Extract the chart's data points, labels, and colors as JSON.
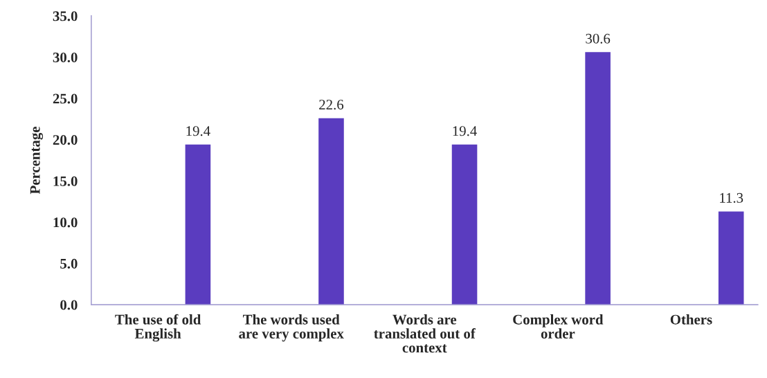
{
  "chart_data": {
    "type": "bar",
    "ylabel": "Percentage",
    "categories": [
      "The use of old\nEnglish",
      "The words used\nare very complex",
      "Words are\ntranslated out of\ncontext",
      "Complex word\norder",
      "Others"
    ],
    "values": [
      19.4,
      22.6,
      19.4,
      30.6,
      11.3
    ],
    "color": "#5a3cbf",
    "ylim": [
      0,
      35
    ],
    "yticks": [
      {
        "value": 0,
        "label": "0.0"
      },
      {
        "value": 5,
        "label": "5.0"
      },
      {
        "value": 10,
        "label": "10.0"
      },
      {
        "value": 15,
        "label": "15.0"
      },
      {
        "value": 20,
        "label": "20.0"
      },
      {
        "value": 25,
        "label": "25.0"
      },
      {
        "value": 30,
        "label": "30.0"
      },
      {
        "value": 35,
        "label": "35.0"
      }
    ],
    "data_labels": true,
    "grid": false,
    "legend": false
  }
}
